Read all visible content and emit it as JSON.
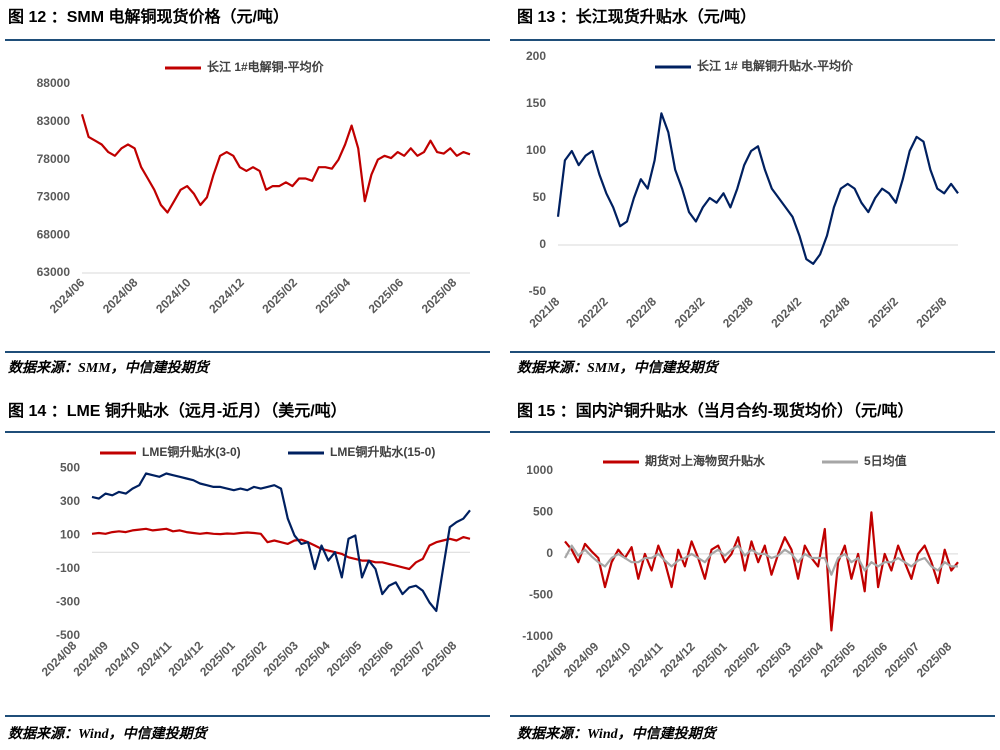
{
  "chart_data": [
    {
      "type": "line",
      "title": "图 12 ：SMM 电解铜现货价格（元/吨）",
      "source": "数据来源：SMM，中信建投期货",
      "xticks": [
        "2024/06",
        "2024/08",
        "2024/10",
        "2024/12",
        "2025/02",
        "2025/04",
        "2025/06",
        "2025/08"
      ],
      "ylim": [
        63000,
        92500
      ],
      "yticks": [
        63000,
        68000,
        73000,
        78000,
        83000,
        88000
      ],
      "grid": false,
      "series": [
        {
          "name": "长江 1#电解铜-平均价",
          "color": "#c00000",
          "values": [
            84000,
            81000,
            80500,
            80000,
            79000,
            78500,
            79500,
            80000,
            79500,
            77000,
            75500,
            74000,
            72000,
            71000,
            72500,
            74000,
            74500,
            73500,
            72000,
            73000,
            76000,
            78500,
            79000,
            78500,
            77000,
            76500,
            77000,
            76500,
            74000,
            74500,
            74500,
            75000,
            74500,
            75500,
            75500,
            75200,
            77000,
            77000,
            76800,
            78000,
            80000,
            82500,
            79500,
            72500,
            76000,
            78000,
            78500,
            78200,
            79000,
            78500,
            79500,
            78500,
            79000,
            80500,
            79000,
            78800,
            79500,
            78500,
            79000,
            78700
          ]
        }
      ]
    },
    {
      "type": "line",
      "title": "图 13 ：长江现货升贴水（元/吨）",
      "source": "数据来源：SMM，中信建投期货",
      "xticks": [
        "2021/8",
        "2022/2",
        "2022/8",
        "2023/2",
        "2023/8",
        "2024/2",
        "2024/8",
        "2025/2",
        "2025/8"
      ],
      "ylim": [
        -50,
        200
      ],
      "yticks": [
        -50,
        0,
        50,
        100,
        150,
        200
      ],
      "grid": false,
      "series": [
        {
          "name": "长江 1# 电解铜升贴水-平均价",
          "color": "#002060",
          "values": [
            30,
            90,
            100,
            85,
            95,
            100,
            75,
            55,
            40,
            20,
            25,
            50,
            70,
            60,
            90,
            140,
            120,
            80,
            60,
            35,
            25,
            40,
            50,
            45,
            55,
            40,
            60,
            85,
            100,
            105,
            80,
            60,
            50,
            40,
            30,
            10,
            -15,
            -20,
            -10,
            10,
            40,
            60,
            65,
            60,
            45,
            35,
            50,
            60,
            55,
            45,
            70,
            100,
            115,
            110,
            80,
            60,
            55,
            65,
            55
          ]
        }
      ]
    },
    {
      "type": "line",
      "title": "图 14 ：LME 铜升贴水（远月-近月）（美元/吨）",
      "source": "数据来源：Wind，中信建投期货",
      "xticks": [
        "2024/08",
        "2024/09",
        "2024/10",
        "2024/11",
        "2024/12",
        "2025/01",
        "2025/02",
        "2025/03",
        "2025/04",
        "2025/05",
        "2025/06",
        "2025/07",
        "2025/08"
      ],
      "ylim": [
        -500,
        640
      ],
      "yticks": [
        -500,
        -300,
        -100,
        100,
        300,
        500
      ],
      "grid": false,
      "series": [
        {
          "name": "LME铜升贴水(3-0)",
          "color": "#c00000",
          "values": [
            110,
            115,
            110,
            120,
            125,
            120,
            130,
            135,
            140,
            130,
            135,
            140,
            125,
            130,
            120,
            115,
            110,
            115,
            110,
            108,
            112,
            110,
            115,
            118,
            115,
            110,
            60,
            70,
            60,
            50,
            70,
            75,
            60,
            40,
            20,
            10,
            0,
            -10,
            -30,
            -40,
            -50,
            -50,
            -60,
            -60,
            -70,
            -80,
            -90,
            -100,
            -60,
            -40,
            40,
            60,
            70,
            80,
            70,
            90,
            80
          ]
        },
        {
          "name": "LME铜升贴水(15-0)",
          "color": "#002060",
          "values": [
            330,
            320,
            350,
            340,
            360,
            350,
            380,
            400,
            470,
            460,
            450,
            470,
            460,
            450,
            440,
            430,
            410,
            400,
            390,
            390,
            380,
            370,
            380,
            370,
            390,
            380,
            390,
            400,
            380,
            200,
            100,
            50,
            60,
            -100,
            40,
            -50,
            0,
            -150,
            80,
            100,
            -150,
            -50,
            -100,
            -250,
            -200,
            -180,
            -250,
            -210,
            -200,
            -230,
            -300,
            -350,
            -100,
            150,
            180,
            200,
            250
          ]
        }
      ]
    },
    {
      "type": "line",
      "title": "图 15 ：国内沪铜升贴水（当月合约-现货均价）（元/吨）",
      "source": "数据来源：Wind，中信建投期货",
      "xticks": [
        "2024/08",
        "2024/09",
        "2024/10",
        "2024/11",
        "2024/12",
        "2025/01",
        "2025/02",
        "2025/03",
        "2025/04",
        "2025/05",
        "2025/06",
        "2025/07",
        "2025/08"
      ],
      "ylim": [
        -1000,
        1250
      ],
      "yticks": [
        -1000,
        -500,
        0,
        500,
        1000
      ],
      "grid": false,
      "series": [
        {
          "name": "期货对上海物贸升贴水",
          "color": "#c00000",
          "values": [
            150,
            50,
            -100,
            120,
            30,
            -50,
            -400,
            -100,
            50,
            -50,
            80,
            -300,
            0,
            -200,
            100,
            -100,
            -400,
            50,
            -150,
            150,
            -50,
            -300,
            50,
            100,
            -100,
            0,
            200,
            -200,
            150,
            -100,
            100,
            -250,
            0,
            200,
            50,
            -300,
            100,
            -50,
            -150,
            300,
            -920,
            -100,
            100,
            -300,
            0,
            -450,
            500,
            -400,
            0,
            -200,
            100,
            -100,
            -300,
            0,
            100,
            -100,
            -350,
            50,
            -200,
            -100
          ]
        },
        {
          "name": "5日均值",
          "color": "#a6a6a6",
          "values": [
            -50,
            100,
            -20,
            50,
            -30,
            -100,
            -150,
            -50,
            0,
            -50,
            -100,
            -100,
            -50,
            -50,
            0,
            -80,
            -150,
            -80,
            -50,
            0,
            -50,
            -100,
            0,
            50,
            -20,
            50,
            100,
            -20,
            50,
            0,
            0,
            -50,
            -20,
            50,
            0,
            -100,
            0,
            -50,
            -50,
            -50,
            -250,
            -50,
            0,
            -100,
            -50,
            -200,
            -100,
            -150,
            -100,
            -100,
            -50,
            -100,
            -150,
            -80,
            -50,
            -150,
            -200,
            -100,
            -150,
            -150
          ]
        }
      ]
    }
  ]
}
